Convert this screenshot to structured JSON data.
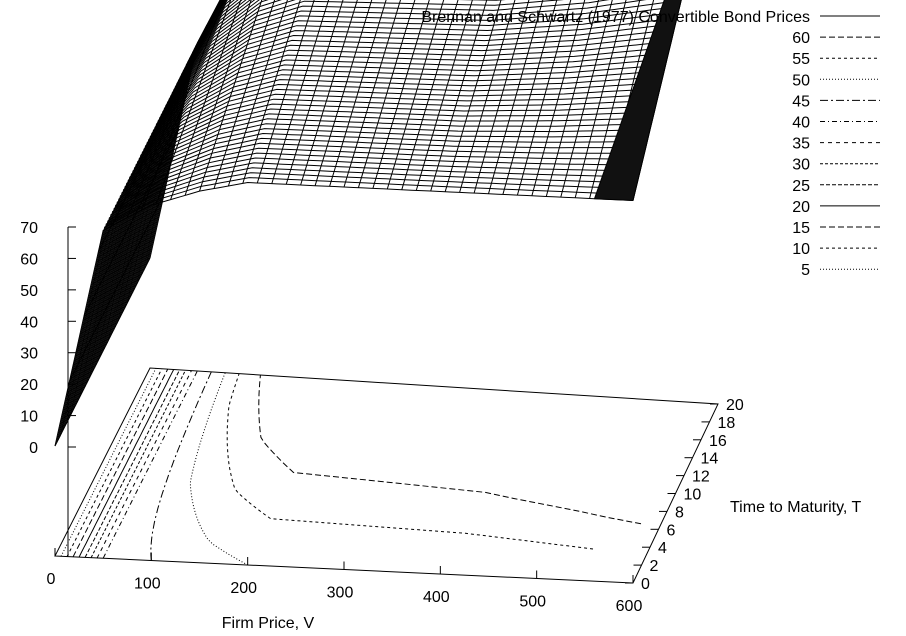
{
  "chart_data": {
    "type": "surface-3d",
    "title": "",
    "xlabel": "Firm Price, V",
    "ylabel": "Time to Maturity, T",
    "zlabel": "",
    "xlim": [
      0,
      600
    ],
    "ylim": [
      0,
      20
    ],
    "zlim": [
      0,
      70
    ],
    "x_ticks": [
      "0",
      "100",
      "200",
      "300",
      "400",
      "500",
      "600"
    ],
    "y_ticks": [
      "0",
      "2",
      "4",
      "6",
      "8",
      "10",
      "12",
      "14",
      "16",
      "18",
      "20"
    ],
    "z_ticks": [
      "0",
      "10",
      "20",
      "30",
      "40",
      "50",
      "60",
      "70"
    ],
    "legend_position": "top-right",
    "legend": [
      {
        "label": "Brennan and Schwartz (1977) Convertible Bond Prices",
        "dash": "none"
      },
      {
        "label": "60",
        "dash": "6,3"
      },
      {
        "label": "55",
        "dash": "3,3"
      },
      {
        "label": "50",
        "dash": "1,2"
      },
      {
        "label": "45",
        "dash": "8,3,2,3"
      },
      {
        "label": "40",
        "dash": "5,3,1,3"
      },
      {
        "label": "35",
        "dash": "4,4"
      },
      {
        "label": "30",
        "dash": "3,2"
      },
      {
        "label": "25",
        "dash": "4,2"
      },
      {
        "label": "20",
        "dash": "none"
      },
      {
        "label": "15",
        "dash": "6,3"
      },
      {
        "label": "10",
        "dash": "3,3"
      },
      {
        "label": "5",
        "dash": "1,2"
      }
    ],
    "surface_samples": {
      "V": [
        0,
        50,
        100,
        150,
        200,
        300,
        400,
        500,
        600
      ],
      "price_at_T20": [
        0,
        40,
        57,
        66,
        70,
        71,
        72,
        76,
        82
      ],
      "price_at_T0": [
        0,
        40,
        45,
        48,
        50,
        50,
        50,
        50,
        50
      ]
    }
  }
}
